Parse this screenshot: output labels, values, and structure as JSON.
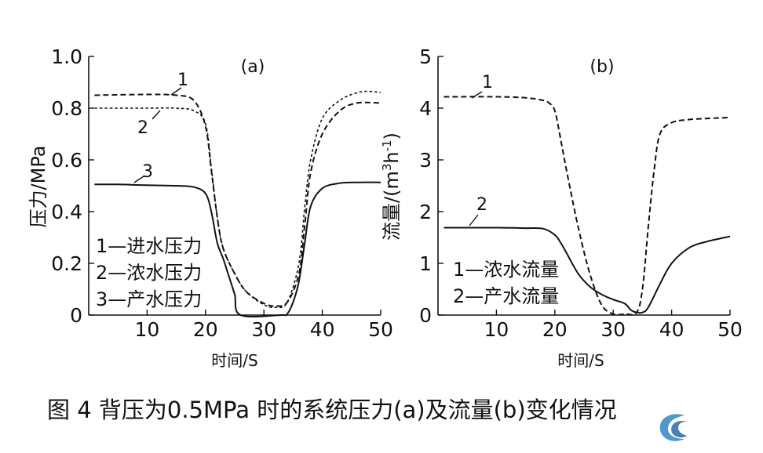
{
  "caption": "图 4    背压为0.5MPa 时的系统压力(a)及流量(b)变化情况",
  "chart_data": [
    {
      "type": "line",
      "panel": "(a)",
      "xlabel": "时间/S",
      "ylabel": "压力/MPa",
      "xlim": [
        0,
        50
      ],
      "ylim": [
        0,
        1.0
      ],
      "xticks": [
        "10",
        "20",
        "30",
        "40",
        "50"
      ],
      "yticks": [
        "0",
        "0.2",
        "0.4",
        "0.6",
        "0.8",
        "1.0"
      ],
      "legend": [
        "1—进水压力",
        "2—浓水压力",
        "3—产水压力"
      ],
      "series": [
        {
          "name": "进水压力",
          "label": "1",
          "style": "dashed",
          "x": [
            1,
            10,
            15,
            18,
            20,
            21,
            22,
            23,
            25,
            27,
            30,
            32,
            34,
            36,
            37,
            38,
            40,
            43,
            46,
            50
          ],
          "y": [
            0.85,
            0.853,
            0.85,
            0.83,
            0.73,
            0.56,
            0.38,
            0.26,
            0.16,
            0.09,
            0.045,
            0.035,
            0.05,
            0.16,
            0.35,
            0.55,
            0.7,
            0.79,
            0.82,
            0.82
          ]
        },
        {
          "name": "浓水压力",
          "label": "2",
          "style": "dotted",
          "x": [
            1,
            10,
            15,
            18,
            20,
            21,
            22,
            23,
            25,
            27,
            30,
            32,
            34,
            36,
            37,
            38,
            40,
            43,
            46,
            48,
            50
          ],
          "y": [
            0.8,
            0.8,
            0.8,
            0.79,
            0.74,
            0.57,
            0.38,
            0.26,
            0.16,
            0.09,
            0.04,
            0.03,
            0.05,
            0.2,
            0.42,
            0.6,
            0.76,
            0.83,
            0.86,
            0.865,
            0.86
          ]
        },
        {
          "name": "产水压力",
          "label": "3",
          "style": "solid",
          "x": [
            1,
            5,
            10,
            15,
            18,
            20,
            21,
            22,
            23,
            24,
            25,
            26,
            33,
            34,
            35,
            36,
            37,
            38,
            40,
            43,
            46,
            50
          ],
          "y": [
            0.505,
            0.505,
            0.502,
            0.5,
            0.495,
            0.47,
            0.4,
            0.28,
            0.22,
            0.15,
            0.08,
            0.0,
            0.0,
            0.005,
            0.05,
            0.13,
            0.28,
            0.42,
            0.49,
            0.51,
            0.513,
            0.513
          ]
        }
      ]
    },
    {
      "type": "line",
      "panel": "(b)",
      "xlabel": "时间/S",
      "ylabel": "流量/(m3h-1)",
      "xlim": [
        0,
        50
      ],
      "ylim": [
        0,
        5
      ],
      "xticks": [
        "10",
        "20",
        "30",
        "40",
        "50"
      ],
      "yticks": [
        "0",
        "1",
        "2",
        "3",
        "4",
        "5"
      ],
      "legend": [
        "1—浓水流量",
        "2—产水流量"
      ],
      "series": [
        {
          "name": "浓水流量",
          "label": "1",
          "style": "dashed",
          "x": [
            1,
            10,
            15,
            18,
            19,
            20,
            21,
            22,
            24,
            26,
            28,
            30,
            32,
            34,
            35,
            36,
            37,
            38,
            40,
            43,
            46,
            50
          ],
          "y": [
            4.22,
            4.22,
            4.2,
            4.15,
            4.1,
            3.95,
            3.4,
            2.8,
            1.7,
            0.8,
            0.2,
            0.02,
            0.02,
            0.05,
            0.5,
            1.7,
            2.8,
            3.5,
            3.72,
            3.78,
            3.8,
            3.82
          ]
        },
        {
          "name": "产水流量",
          "label": "2",
          "style": "solid",
          "x": [
            1,
            10,
            15,
            18,
            20,
            21,
            22,
            24,
            26,
            28,
            30,
            32,
            33,
            34,
            35,
            36,
            38,
            40,
            43,
            46,
            50
          ],
          "y": [
            1.69,
            1.69,
            1.68,
            1.67,
            1.55,
            1.4,
            1.2,
            0.8,
            0.55,
            0.4,
            0.3,
            0.22,
            0.1,
            0.05,
            0.05,
            0.15,
            0.6,
            1.0,
            1.3,
            1.42,
            1.52
          ]
        }
      ]
    }
  ]
}
